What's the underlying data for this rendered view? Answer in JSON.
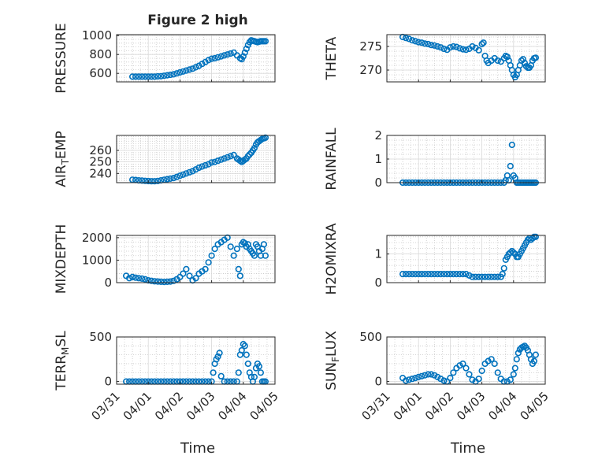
{
  "figure": {
    "title": "Figure 2 high",
    "xlabel": "Time",
    "x_ticks": [
      "03/31",
      "04/01",
      "04/02",
      "04/03",
      "04/04",
      "04/05"
    ],
    "x_range_days": [
      0,
      5
    ],
    "marker": "circle-open",
    "color": "#0072BD"
  },
  "chart_data": [
    {
      "type": "scatter",
      "id": "pressure",
      "ylabel": "PRESSURE",
      "ylim": [
        510,
        1010
      ],
      "yticks": [
        600,
        800,
        1000
      ],
      "x": [
        0.5,
        0.6,
        0.7,
        0.8,
        0.9,
        1.0,
        1.1,
        1.2,
        1.3,
        1.4,
        1.5,
        1.6,
        1.7,
        1.8,
        1.9,
        2.0,
        2.1,
        2.2,
        2.3,
        2.4,
        2.5,
        2.6,
        2.7,
        2.8,
        2.9,
        3.0,
        3.1,
        3.2,
        3.3,
        3.4,
        3.5,
        3.6,
        3.7,
        3.8,
        3.9,
        3.95,
        4.0,
        4.05,
        4.1,
        4.15,
        4.2,
        4.25,
        4.3,
        4.35,
        4.4,
        4.45,
        4.5,
        4.55,
        4.6,
        4.65,
        4.7
      ],
      "y": [
        565,
        565,
        565,
        565,
        565,
        565,
        565,
        565,
        568,
        570,
        575,
        580,
        585,
        590,
        600,
        610,
        620,
        630,
        640,
        650,
        665,
        680,
        700,
        720,
        740,
        755,
        760,
        770,
        780,
        790,
        800,
        810,
        820,
        790,
        760,
        750,
        780,
        820,
        860,
        900,
        930,
        950,
        945,
        940,
        935,
        930,
        935,
        940,
        940,
        940,
        940
      ]
    },
    {
      "type": "scatter",
      "id": "theta",
      "ylabel": "THETA",
      "ylim": [
        267.5,
        277.5
      ],
      "yticks": [
        270,
        275
      ],
      "x": [
        0.5,
        0.6,
        0.7,
        0.8,
        0.9,
        1.0,
        1.1,
        1.2,
        1.3,
        1.4,
        1.5,
        1.6,
        1.7,
        1.8,
        1.9,
        2.0,
        2.1,
        2.2,
        2.3,
        2.4,
        2.5,
        2.6,
        2.7,
        2.8,
        2.9,
        3.0,
        3.05,
        3.1,
        3.15,
        3.2,
        3.3,
        3.4,
        3.5,
        3.6,
        3.7,
        3.75,
        3.8,
        3.85,
        3.9,
        3.95,
        4.0,
        4.05,
        4.1,
        4.15,
        4.2,
        4.25,
        4.3,
        4.35,
        4.4,
        4.45,
        4.5,
        4.55,
        4.6,
        4.65,
        4.7
      ],
      "y": [
        277,
        276.8,
        276.6,
        276.3,
        276.1,
        275.9,
        275.8,
        275.6,
        275.5,
        275.3,
        275.2,
        275,
        274.8,
        274.5,
        274.3,
        274.8,
        275,
        274.9,
        274.6,
        274.4,
        274.3,
        274.5,
        275,
        274.7,
        274.2,
        275.5,
        275.8,
        273,
        272,
        271.5,
        272,
        272.5,
        272,
        271.8,
        272.5,
        273,
        272.8,
        272,
        271,
        270,
        269,
        268.5,
        269,
        270,
        271,
        272,
        272.3,
        271.5,
        270.8,
        270.5,
        270.5,
        271,
        272,
        272.5,
        272.6
      ]
    },
    {
      "type": "scatter",
      "id": "air_temp",
      "ylabel": "AIR_TEMP",
      "ylim": [
        232,
        273
      ],
      "yticks": [
        240,
        250,
        260
      ],
      "x": [
        0.5,
        0.6,
        0.7,
        0.8,
        0.9,
        1.0,
        1.1,
        1.2,
        1.3,
        1.4,
        1.5,
        1.6,
        1.7,
        1.8,
        1.9,
        2.0,
        2.1,
        2.2,
        2.3,
        2.4,
        2.5,
        2.6,
        2.7,
        2.8,
        2.9,
        3.0,
        3.1,
        3.2,
        3.3,
        3.4,
        3.5,
        3.6,
        3.7,
        3.8,
        3.85,
        3.9,
        3.95,
        4.0,
        4.05,
        4.1,
        4.15,
        4.2,
        4.25,
        4.3,
        4.35,
        4.4,
        4.45,
        4.5,
        4.55,
        4.6,
        4.65,
        4.7
      ],
      "y": [
        234.5,
        234.3,
        234,
        233.8,
        233.6,
        233.4,
        233.2,
        233.2,
        233.5,
        234,
        234.5,
        235,
        235.5,
        236,
        237,
        238,
        239,
        240,
        241,
        242,
        243.5,
        245,
        246,
        247,
        248,
        249.5,
        250,
        251,
        252,
        253,
        254,
        255,
        256,
        253,
        252,
        251,
        250,
        251,
        252,
        253,
        255,
        256.5,
        258,
        260,
        262,
        265,
        267,
        268,
        269,
        270,
        270.5,
        271
      ]
    },
    {
      "type": "scatter",
      "id": "rainfall",
      "ylabel": "RAINFALL",
      "ylim": [
        0,
        2
      ],
      "yticks": [
        0,
        1,
        2
      ],
      "x": [
        0.5,
        0.6,
        0.7,
        0.8,
        0.9,
        1.0,
        1.1,
        1.2,
        1.3,
        1.4,
        1.5,
        1.6,
        1.7,
        1.8,
        1.9,
        2.0,
        2.1,
        2.2,
        2.3,
        2.4,
        2.5,
        2.6,
        2.7,
        2.8,
        2.9,
        3.0,
        3.1,
        3.2,
        3.3,
        3.4,
        3.5,
        3.6,
        3.7,
        3.75,
        3.8,
        3.85,
        3.9,
        3.95,
        4.0,
        4.05,
        4.1,
        4.15,
        4.2,
        4.25,
        4.3,
        4.35,
        4.4,
        4.45,
        4.5,
        4.55,
        4.6,
        4.65,
        4.7
      ],
      "y": [
        0,
        0,
        0,
        0,
        0,
        0,
        0,
        0,
        0,
        0,
        0,
        0,
        0,
        0,
        0,
        0,
        0,
        0,
        0,
        0,
        0,
        0,
        0,
        0,
        0,
        0,
        0,
        0,
        0,
        0,
        0,
        0,
        0,
        0.1,
        0.3,
        0.1,
        0.7,
        1.6,
        0.3,
        0.2,
        0,
        0,
        0,
        0,
        0,
        0,
        0,
        0,
        0,
        0,
        0,
        0,
        0
      ]
    },
    {
      "type": "scatter",
      "id": "mixdepth",
      "ylabel": "MIXDEPTH",
      "ylim": [
        0,
        2100
      ],
      "yticks": [
        0,
        1000,
        2000
      ],
      "x": [
        0.3,
        0.4,
        0.5,
        0.6,
        0.7,
        0.8,
        0.9,
        1.0,
        1.1,
        1.2,
        1.3,
        1.4,
        1.5,
        1.6,
        1.7,
        1.8,
        1.9,
        2.0,
        2.1,
        2.2,
        2.3,
        2.4,
        2.5,
        2.6,
        2.7,
        2.8,
        2.9,
        3.0,
        3.1,
        3.2,
        3.3,
        3.4,
        3.5,
        3.6,
        3.7,
        3.8,
        3.85,
        3.9,
        3.95,
        4.0,
        4.05,
        4.1,
        4.15,
        4.2,
        4.25,
        4.3,
        4.35,
        4.4,
        4.45,
        4.5,
        4.55,
        4.6,
        4.65,
        4.7
      ],
      "y": [
        300,
        200,
        250,
        220,
        200,
        180,
        150,
        100,
        80,
        60,
        50,
        40,
        30,
        40,
        50,
        80,
        150,
        250,
        400,
        600,
        300,
        100,
        200,
        400,
        500,
        600,
        900,
        1200,
        1500,
        1700,
        1800,
        1900,
        2000,
        1600,
        1200,
        1500,
        600,
        300,
        1700,
        1800,
        1750,
        1600,
        1700,
        1500,
        1400,
        1300,
        1200,
        1700,
        1600,
        1400,
        1200,
        1500,
        1700,
        1200
      ]
    },
    {
      "type": "scatter",
      "id": "h2omixra",
      "ylabel": "H2OMIXRA",
      "ylim": [
        0,
        1.65
      ],
      "yticks": [
        0,
        1
      ],
      "x": [
        0.5,
        0.6,
        0.7,
        0.8,
        0.9,
        1.0,
        1.1,
        1.2,
        1.3,
        1.4,
        1.5,
        1.6,
        1.7,
        1.8,
        1.9,
        2.0,
        2.1,
        2.2,
        2.3,
        2.4,
        2.5,
        2.6,
        2.7,
        2.8,
        2.9,
        3.0,
        3.1,
        3.2,
        3.3,
        3.4,
        3.5,
        3.6,
        3.65,
        3.7,
        3.75,
        3.8,
        3.85,
        3.9,
        3.95,
        4.0,
        4.05,
        4.1,
        4.15,
        4.2,
        4.25,
        4.3,
        4.35,
        4.4,
        4.45,
        4.5,
        4.55,
        4.6,
        4.65,
        4.7
      ],
      "y": [
        0.3,
        0.3,
        0.3,
        0.3,
        0.3,
        0.3,
        0.3,
        0.3,
        0.3,
        0.3,
        0.3,
        0.3,
        0.3,
        0.3,
        0.3,
        0.3,
        0.3,
        0.3,
        0.3,
        0.3,
        0.3,
        0.25,
        0.2,
        0.2,
        0.2,
        0.2,
        0.2,
        0.2,
        0.2,
        0.2,
        0.2,
        0.2,
        0.3,
        0.5,
        0.8,
        0.9,
        1.0,
        1.05,
        1.1,
        1.05,
        1.0,
        0.9,
        0.9,
        1.0,
        1.1,
        1.2,
        1.3,
        1.4,
        1.5,
        1.55,
        1.5,
        1.55,
        1.6,
        1.6
      ]
    },
    {
      "type": "scatter",
      "id": "terr_msl",
      "ylabel": "TERR_MSL",
      "ylim": [
        -30,
        500
      ],
      "yticks": [
        0,
        500
      ],
      "x": [
        0.3,
        0.4,
        0.5,
        0.6,
        0.7,
        0.8,
        0.9,
        1.0,
        1.1,
        1.2,
        1.3,
        1.4,
        1.5,
        1.6,
        1.7,
        1.8,
        1.9,
        2.0,
        2.1,
        2.2,
        2.3,
        2.4,
        2.5,
        2.6,
        2.7,
        2.8,
        2.9,
        3.0,
        3.05,
        3.1,
        3.15,
        3.2,
        3.25,
        3.3,
        3.4,
        3.5,
        3.6,
        3.7,
        3.8,
        3.85,
        3.9,
        3.95,
        4.0,
        4.05,
        4.1,
        4.15,
        4.2,
        4.25,
        4.3,
        4.35,
        4.4,
        4.45,
        4.5,
        4.55,
        4.6,
        4.65,
        4.7
      ],
      "y": [
        0,
        0,
        0,
        0,
        0,
        0,
        0,
        0,
        0,
        0,
        0,
        0,
        0,
        0,
        0,
        0,
        0,
        0,
        0,
        0,
        0,
        0,
        0,
        0,
        0,
        0,
        0,
        0,
        100,
        200,
        250,
        280,
        320,
        60,
        0,
        0,
        0,
        0,
        0,
        100,
        300,
        350,
        420,
        400,
        300,
        200,
        100,
        50,
        0,
        50,
        150,
        200,
        170,
        100,
        0,
        0,
        0
      ]
    },
    {
      "type": "scatter",
      "id": "sun_flux",
      "ylabel": "SUN_FLUX",
      "ylim": [
        -30,
        500
      ],
      "yticks": [
        0,
        500
      ],
      "x": [
        0.5,
        0.6,
        0.7,
        0.8,
        0.9,
        1.0,
        1.1,
        1.2,
        1.3,
        1.4,
        1.5,
        1.6,
        1.7,
        1.8,
        1.9,
        2.0,
        2.1,
        2.2,
        2.3,
        2.4,
        2.5,
        2.6,
        2.7,
        2.8,
        2.9,
        3.0,
        3.1,
        3.2,
        3.3,
        3.4,
        3.5,
        3.6,
        3.7,
        3.8,
        3.9,
        4.0,
        4.05,
        4.1,
        4.15,
        4.2,
        4.25,
        4.3,
        4.35,
        4.4,
        4.45,
        4.5,
        4.55,
        4.6,
        4.65,
        4.7
      ],
      "y": [
        40,
        10,
        20,
        30,
        40,
        50,
        60,
        70,
        80,
        80,
        70,
        50,
        30,
        10,
        0,
        40,
        100,
        150,
        180,
        200,
        150,
        80,
        20,
        0,
        30,
        120,
        200,
        230,
        250,
        200,
        100,
        30,
        0,
        0,
        20,
        80,
        150,
        250,
        320,
        360,
        380,
        390,
        400,
        380,
        350,
        300,
        250,
        200,
        230,
        300
      ]
    }
  ]
}
